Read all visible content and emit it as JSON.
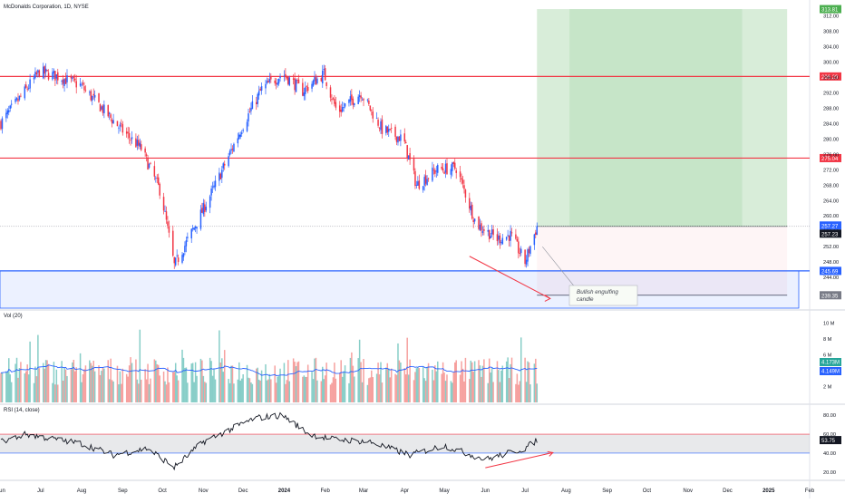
{
  "header": {
    "symbol_line": "McDonalds Corporation, 1D, NYSE"
  },
  "chart_data": [
    {
      "type": "candlestick",
      "name": "price",
      "ylim": [
        236,
        315
      ],
      "y_ticks": [
        244,
        248,
        252,
        256,
        260,
        264,
        268,
        272,
        276,
        280,
        284,
        288,
        292,
        296,
        300,
        304,
        308,
        312
      ],
      "y_tick_labels": [
        "244.00",
        "248.00",
        "252.00",
        "256.00",
        "260.00",
        "264.00",
        "268.00",
        "272.00",
        "276.00",
        "280.00",
        "284.00",
        "288.00",
        "292.00",
        "296.00",
        "300.00",
        "304.00",
        "308.00",
        "312.00"
      ],
      "x_labels": [
        "Jun",
        "Jul",
        "Aug",
        "Sep",
        "Oct",
        "Nov",
        "Dec",
        "2024",
        "Feb",
        "Mar",
        "Apr",
        "May",
        "Jun",
        "Jul",
        "Aug",
        "Sep",
        "Oct",
        "Nov",
        "Dec",
        "2025",
        "Feb"
      ],
      "x_dates": [
        "2023-06-01",
        "2023-07-01",
        "2023-08-01",
        "2023-09-01",
        "2023-10-01",
        "2023-11-01",
        "2023-12-01",
        "2024-01-01",
        "2024-02-01",
        "2024-03-01",
        "2024-04-01",
        "2024-05-01",
        "2024-06-01",
        "2024-07-01",
        "2024-08-01",
        "2024-09-01",
        "2024-10-01",
        "2024-11-01",
        "2024-12-01",
        "2025-01-01",
        "2025-02-01"
      ],
      "x_range": [
        "2023-06-01",
        "2025-02-01"
      ],
      "close_path": [
        {
          "date": "2023-06-01",
          "close": 284.2
        },
        {
          "date": "2023-06-15",
          "close": 290.5
        },
        {
          "date": "2023-06-30",
          "close": 297.5
        },
        {
          "date": "2023-07-15",
          "close": 296.2
        },
        {
          "date": "2023-07-31",
          "close": 294.0
        },
        {
          "date": "2023-08-15",
          "close": 288.5
        },
        {
          "date": "2023-08-31",
          "close": 282.5
        },
        {
          "date": "2023-09-15",
          "close": 277.5
        },
        {
          "date": "2023-09-30",
          "close": 266.0
        },
        {
          "date": "2023-10-10",
          "close": 247.0
        },
        {
          "date": "2023-10-25",
          "close": 257.0
        },
        {
          "date": "2023-11-10",
          "close": 268.0
        },
        {
          "date": "2023-11-30",
          "close": 283.0
        },
        {
          "date": "2023-12-15",
          "close": 293.0
        },
        {
          "date": "2023-12-31",
          "close": 297.0
        },
        {
          "date": "2024-01-15",
          "close": 292.5
        },
        {
          "date": "2024-01-31",
          "close": 297.0
        },
        {
          "date": "2024-02-10",
          "close": 287.0
        },
        {
          "date": "2024-02-28",
          "close": 292.0
        },
        {
          "date": "2024-03-15",
          "close": 282.5
        },
        {
          "date": "2024-03-31",
          "close": 280.0
        },
        {
          "date": "2024-04-10",
          "close": 268.0
        },
        {
          "date": "2024-04-25",
          "close": 272.0
        },
        {
          "date": "2024-05-10",
          "close": 272.5
        },
        {
          "date": "2024-05-25",
          "close": 258.0
        },
        {
          "date": "2024-06-10",
          "close": 254.0
        },
        {
          "date": "2024-06-20",
          "close": 255.0
        },
        {
          "date": "2024-07-01",
          "close": 248.0
        },
        {
          "date": "2024-07-10",
          "close": 257.27
        }
      ],
      "horizontal_levels": [
        {
          "value": 296.29,
          "label": "296.29",
          "color": "#f23645"
        },
        {
          "value": 275.04,
          "label": "275.04",
          "color": "#f23645"
        },
        {
          "value": 245.69,
          "label": "245.69",
          "color": "#2962ff"
        }
      ],
      "last_prices": [
        {
          "value": 257.27,
          "label": "257.27"
        },
        {
          "value": 257.23,
          "label": "257.23"
        }
      ],
      "position": {
        "target": 313.81,
        "target_label": "313.81",
        "entry": 257.27,
        "stop": 239.35,
        "stop_label": "239.35",
        "start": "2024-07-10",
        "end": "2025-01-15"
      },
      "support_zone": {
        "from": 236,
        "to": 245.69
      },
      "annotation": "Bullish engulfing candle",
      "trendline": {
        "from": {
          "date": "2024-05-20",
          "value": 249.5
        },
        "to": {
          "date": "2024-07-20",
          "value": 238.5
        }
      },
      "colors": {
        "up": "#2962ff",
        "down": "#f23645"
      }
    },
    {
      "type": "bar",
      "name": "volume",
      "title": "Vol (20)",
      "ylim": [
        0,
        11000000
      ],
      "y_ticks": [
        2000000,
        4000000,
        6000000,
        8000000,
        10000000
      ],
      "y_tick_labels": [
        "2 M",
        "4 M",
        "6 M",
        "8 M",
        "10 M"
      ],
      "ma_value_label": "4.173M",
      "volume_value_label": "4.149M",
      "colors": {
        "up": "#26a69a",
        "down": "#ef5350",
        "ma": "#2962ff"
      }
    },
    {
      "type": "line",
      "name": "rsi",
      "title": "RSI (14, close)",
      "ylim": [
        15,
        85
      ],
      "y_ticks": [
        20,
        40,
        60,
        80
      ],
      "y_tick_labels": [
        "20.00",
        "40.00",
        "60.00",
        "80.00"
      ],
      "band": [
        40,
        60
      ],
      "current_label": "53.75",
      "path": [
        {
          "date": "2023-06-01",
          "value": 52
        },
        {
          "date": "2023-06-20",
          "value": 60
        },
        {
          "date": "2023-07-10",
          "value": 55
        },
        {
          "date": "2023-08-01",
          "value": 50
        },
        {
          "date": "2023-08-25",
          "value": 38
        },
        {
          "date": "2023-09-20",
          "value": 45
        },
        {
          "date": "2023-10-10",
          "value": 25
        },
        {
          "date": "2023-11-01",
          "value": 52
        },
        {
          "date": "2023-12-10",
          "value": 77
        },
        {
          "date": "2023-12-31",
          "value": 80
        },
        {
          "date": "2024-01-20",
          "value": 60
        },
        {
          "date": "2024-02-05",
          "value": 55
        },
        {
          "date": "2024-03-05",
          "value": 52
        },
        {
          "date": "2024-04-05",
          "value": 38
        },
        {
          "date": "2024-05-01",
          "value": 48
        },
        {
          "date": "2024-06-01",
          "value": 33
        },
        {
          "date": "2024-07-01",
          "value": 45
        },
        {
          "date": "2024-07-10",
          "value": 53.75
        }
      ],
      "trendline": {
        "from": {
          "date": "2024-06-01",
          "value": 24.5
        },
        "to": {
          "date": "2024-07-22",
          "value": 40.5
        }
      }
    }
  ]
}
